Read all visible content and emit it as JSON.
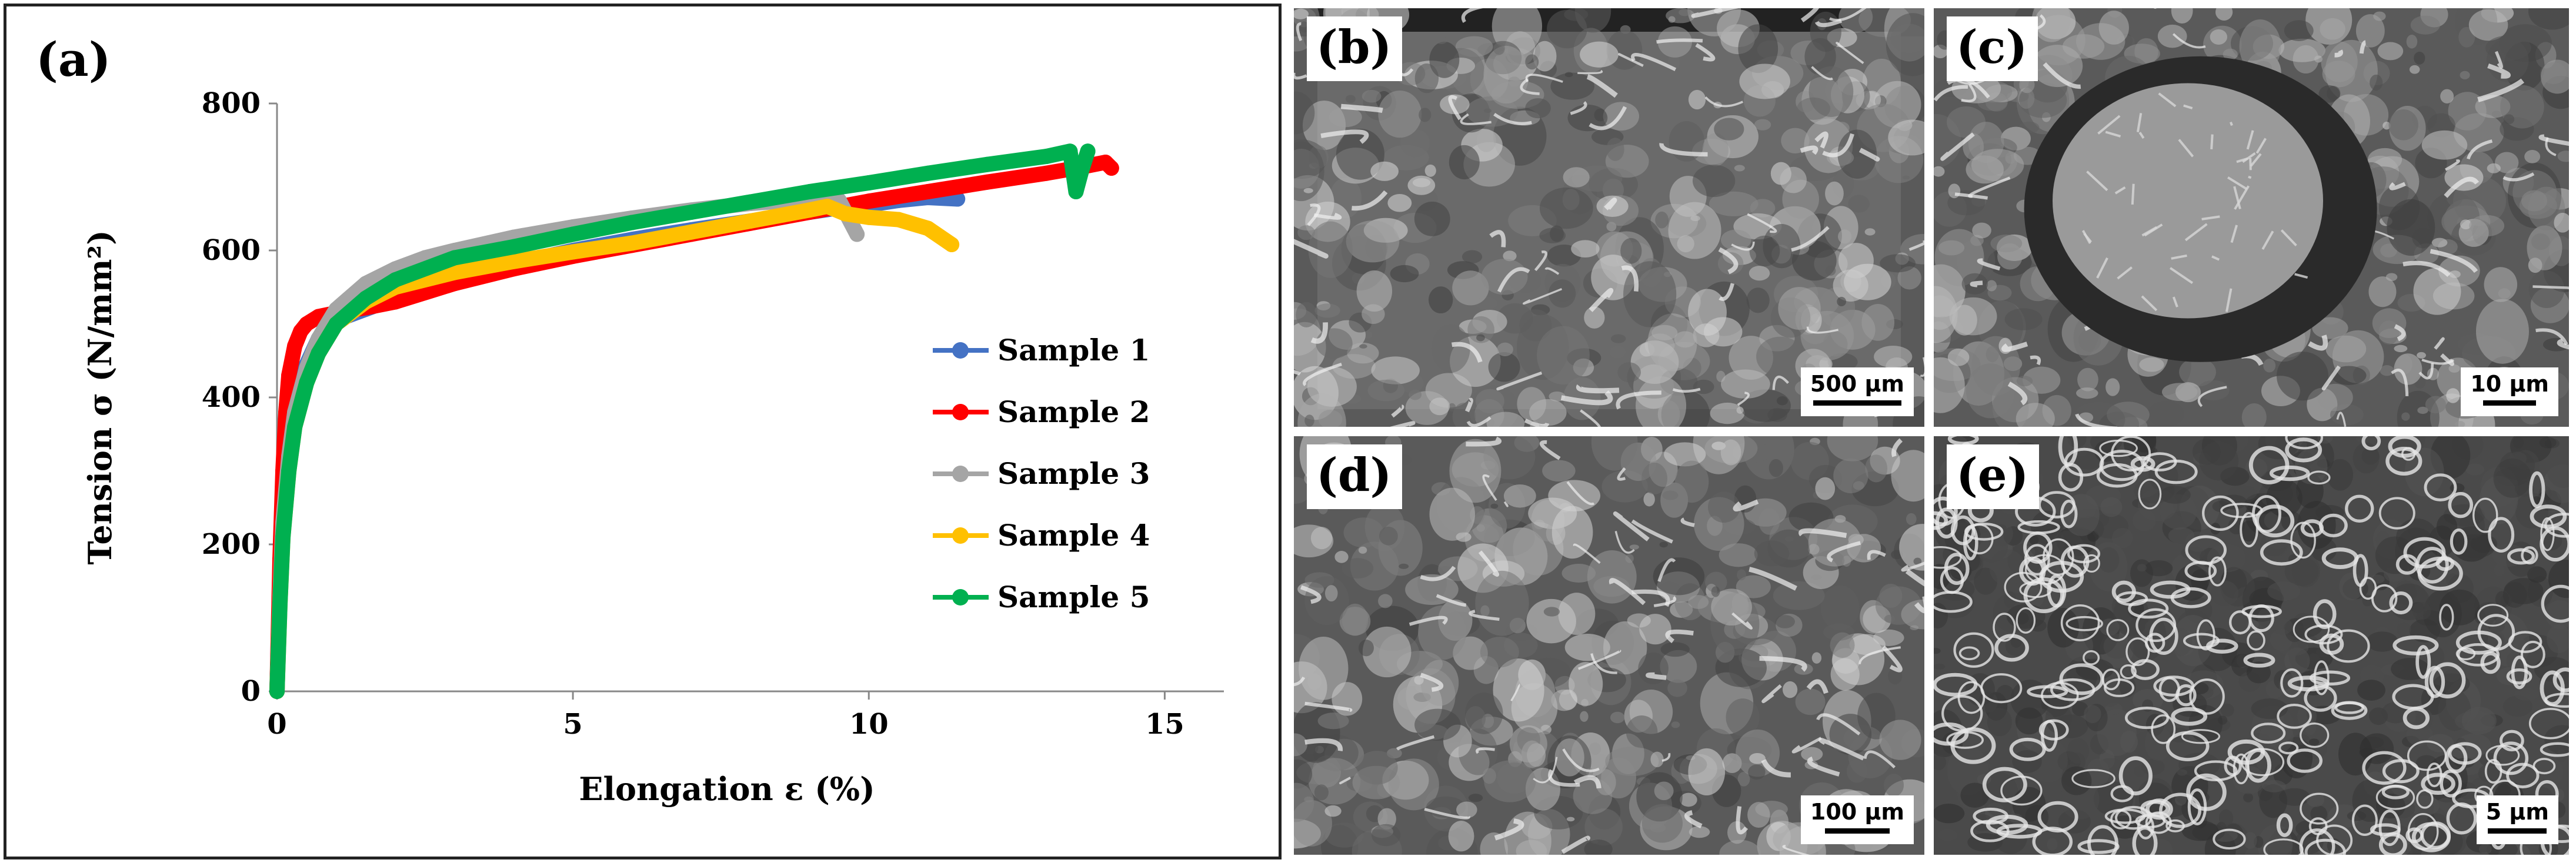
{
  "chart_data": {
    "type": "scatter",
    "panel_label": "(a)",
    "xlabel": "Elongation ε (%)",
    "ylabel": "Tension σ (N/mm²)",
    "xlim": [
      0,
      16
    ],
    "ylim": [
      0,
      800
    ],
    "xticks": [
      "0",
      "5",
      "10",
      "15"
    ],
    "yticks": [
      "0",
      "200",
      "400",
      "600",
      "800"
    ],
    "grid": false,
    "legend_position": "right",
    "series": [
      {
        "name": "Sample 1",
        "color": "#4472C4",
        "x": [
          0,
          0.05,
          0.1,
          0.2,
          0.3,
          0.5,
          0.7,
          1.0,
          1.5,
          2,
          3,
          4,
          5,
          6,
          7,
          8,
          9,
          9.5,
          10,
          10.5,
          11,
          11.5
        ],
        "y": [
          0,
          150,
          250,
          340,
          395,
          445,
          480,
          505,
          520,
          535,
          560,
          582,
          600,
          615,
          628,
          640,
          652,
          658,
          662,
          668,
          672,
          670
        ]
      },
      {
        "name": "Sample 2",
        "color": "#FF0000",
        "x": [
          0,
          0.05,
          0.1,
          0.15,
          0.2,
          0.3,
          0.4,
          0.5,
          0.7,
          1.0,
          1.5,
          2,
          3,
          4,
          5,
          6,
          7,
          8,
          9,
          10,
          11,
          12,
          13,
          13.5,
          14,
          14.1
        ],
        "y": [
          0,
          180,
          300,
          380,
          430,
          470,
          490,
          500,
          510,
          515,
          522,
          530,
          555,
          575,
          592,
          607,
          622,
          637,
          652,
          667,
          680,
          693,
          705,
          712,
          720,
          712
        ]
      },
      {
        "name": "Sample 3",
        "color": "#A5A5A5",
        "x": [
          0,
          0.05,
          0.1,
          0.2,
          0.3,
          0.5,
          0.7,
          1.0,
          1.5,
          2,
          2.5,
          3,
          4,
          5,
          6,
          7,
          8,
          9,
          9.5,
          9.8
        ],
        "y": [
          0,
          130,
          230,
          320,
          380,
          440,
          480,
          520,
          555,
          575,
          590,
          600,
          618,
          632,
          644,
          655,
          664,
          670,
          668,
          622
        ]
      },
      {
        "name": "Sample 4",
        "color": "#FFC000",
        "x": [
          0,
          0.05,
          0.1,
          0.2,
          0.3,
          0.5,
          0.7,
          1.0,
          1.5,
          2,
          3,
          4,
          5,
          6,
          7,
          8,
          9,
          9.3,
          9.6,
          10,
          10.5,
          11,
          11.4
        ],
        "y": [
          0,
          120,
          210,
          300,
          360,
          420,
          460,
          500,
          530,
          550,
          570,
          585,
          598,
          610,
          625,
          640,
          655,
          660,
          650,
          645,
          642,
          630,
          608
        ]
      },
      {
        "name": "Sample 5",
        "color": "#00B050",
        "x": [
          0,
          0.05,
          0.1,
          0.2,
          0.3,
          0.5,
          0.7,
          1.0,
          1.5,
          2,
          3,
          4,
          5,
          6,
          7,
          8,
          9,
          10,
          11,
          12,
          13,
          13.4,
          13.5,
          13.6,
          13.7
        ],
        "y": [
          0,
          120,
          210,
          300,
          360,
          420,
          460,
          500,
          535,
          560,
          590,
          605,
          622,
          638,
          652,
          666,
          680,
          692,
          705,
          717,
          728,
          735,
          680,
          710,
          735
        ]
      }
    ]
  },
  "micrographs": [
    {
      "label": "(b)",
      "scale": "500 µm",
      "texture": "fracture-surface-low-mag"
    },
    {
      "label": "(c)",
      "scale": "10 µm",
      "texture": "inclusion-in-cavity"
    },
    {
      "label": "(d)",
      "scale": "100 µm",
      "texture": "fracture-surface-mid-mag"
    },
    {
      "label": "(e)",
      "scale": "5 µm",
      "texture": "dimple-rupture"
    }
  ]
}
